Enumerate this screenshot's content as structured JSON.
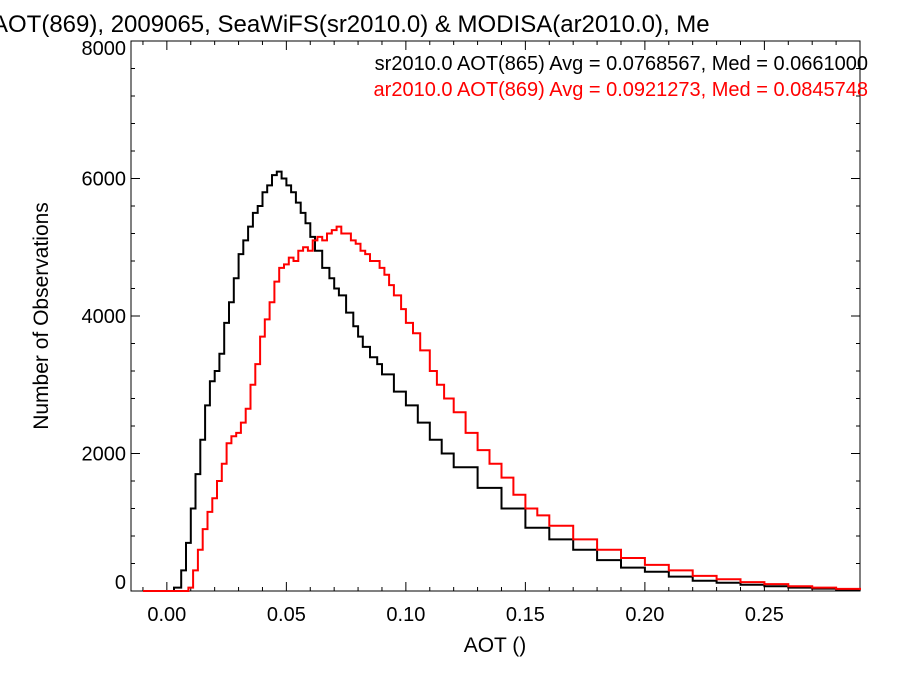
{
  "chart_data": {
    "type": "line",
    "title": "AOT(869), 2009065, SeaWiFS(sr2010.0) & MODISA(ar2010.0), Me",
    "xlabel": "AOT ()",
    "ylabel": "Number of Observations",
    "xlim": [
      -0.015,
      0.29
    ],
    "ylim": [
      0,
      8000
    ],
    "xticks": [
      0.0,
      0.05,
      0.1,
      0.15,
      0.2,
      0.25
    ],
    "xtick_labels": [
      "0.00",
      "0.05",
      "0.10",
      "0.15",
      "0.20",
      "0.25"
    ],
    "yticks": [
      0,
      2000,
      4000,
      6000,
      8000
    ],
    "ytick_labels": [
      "0",
      "2000",
      "4000",
      "6000",
      "8000"
    ],
    "grid": false,
    "legend_position": "top-right",
    "series": [
      {
        "name": "sr2010.0 AOT(865) Avg = 0.0768567, Med = 0.0661000",
        "color": "#000000",
        "x": [
          -0.01,
          0.0,
          0.003,
          0.006,
          0.008,
          0.01,
          0.012,
          0.014,
          0.016,
          0.018,
          0.02,
          0.022,
          0.024,
          0.026,
          0.028,
          0.03,
          0.032,
          0.034,
          0.036,
          0.038,
          0.04,
          0.042,
          0.044,
          0.046,
          0.048,
          0.05,
          0.052,
          0.054,
          0.056,
          0.058,
          0.06,
          0.062,
          0.065,
          0.068,
          0.07,
          0.072,
          0.075,
          0.078,
          0.08,
          0.082,
          0.085,
          0.088,
          0.09,
          0.095,
          0.1,
          0.105,
          0.11,
          0.115,
          0.12,
          0.13,
          0.14,
          0.15,
          0.16,
          0.17,
          0.18,
          0.19,
          0.2,
          0.21,
          0.22,
          0.23,
          0.24,
          0.25,
          0.26,
          0.27,
          0.28,
          0.29
        ],
        "y": [
          0,
          0,
          50,
          300,
          700,
          1200,
          1700,
          2200,
          2700,
          3050,
          3200,
          3450,
          3900,
          4200,
          4550,
          4900,
          5100,
          5300,
          5500,
          5600,
          5800,
          5900,
          6050,
          6100,
          6000,
          5900,
          5800,
          5650,
          5500,
          5350,
          5150,
          4950,
          4700,
          4550,
          4400,
          4300,
          4050,
          3850,
          3700,
          3550,
          3400,
          3300,
          3150,
          2900,
          2700,
          2450,
          2200,
          2000,
          1800,
          1500,
          1200,
          920,
          750,
          600,
          450,
          340,
          280,
          210,
          150,
          120,
          90,
          70,
          50,
          35,
          20,
          10
        ]
      },
      {
        "name": "ar2010.0 AOT(869) Avg = 0.0921273, Med = 0.0845748",
        "color": "#ff0000",
        "x": [
          -0.01,
          0.0,
          0.006,
          0.009,
          0.011,
          0.013,
          0.015,
          0.017,
          0.019,
          0.021,
          0.023,
          0.025,
          0.027,
          0.029,
          0.031,
          0.033,
          0.035,
          0.037,
          0.039,
          0.041,
          0.043,
          0.045,
          0.047,
          0.049,
          0.051,
          0.053,
          0.055,
          0.057,
          0.059,
          0.061,
          0.063,
          0.065,
          0.067,
          0.069,
          0.071,
          0.073,
          0.075,
          0.077,
          0.079,
          0.081,
          0.083,
          0.085,
          0.087,
          0.089,
          0.091,
          0.093,
          0.095,
          0.098,
          0.1,
          0.103,
          0.106,
          0.11,
          0.113,
          0.116,
          0.12,
          0.125,
          0.13,
          0.135,
          0.14,
          0.145,
          0.15,
          0.155,
          0.16,
          0.17,
          0.18,
          0.19,
          0.2,
          0.21,
          0.22,
          0.23,
          0.24,
          0.25,
          0.26,
          0.27,
          0.28,
          0.29
        ],
        "y": [
          0,
          0,
          0,
          50,
          300,
          600,
          900,
          1150,
          1350,
          1600,
          1850,
          2150,
          2250,
          2300,
          2450,
          2650,
          3000,
          3300,
          3700,
          3950,
          4200,
          4500,
          4700,
          4750,
          4850,
          4800,
          4950,
          5000,
          4950,
          5100,
          5150,
          5100,
          5200,
          5250,
          5300,
          5200,
          5200,
          5100,
          5050,
          4950,
          4900,
          4800,
          4800,
          4700,
          4600,
          4450,
          4300,
          4100,
          3900,
          3750,
          3500,
          3200,
          3000,
          2800,
          2600,
          2300,
          2050,
          1850,
          1650,
          1400,
          1200,
          1100,
          950,
          750,
          600,
          480,
          380,
          300,
          220,
          170,
          130,
          100,
          70,
          50,
          30,
          15
        ]
      }
    ]
  }
}
